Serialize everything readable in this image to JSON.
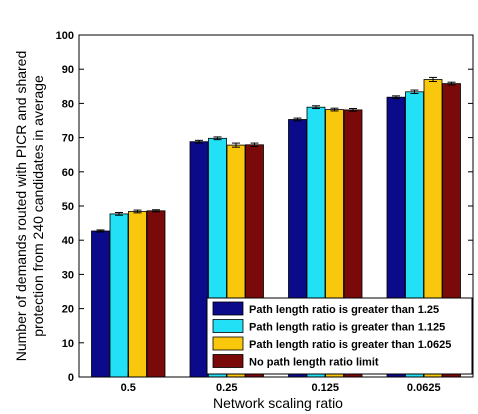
{
  "chart_data": {
    "type": "bar",
    "xlabel": "Network scaling ratio",
    "ylabel_lines": [
      "Number of demands routed with PICR and shared",
      "protection from 240 candidates in average"
    ],
    "categories": [
      "0.5",
      "0.25",
      "0.125",
      "0.0625"
    ],
    "ylim": [
      0,
      100
    ],
    "yticks": [
      0,
      10,
      20,
      30,
      40,
      50,
      60,
      70,
      80,
      90,
      100
    ],
    "grid": false,
    "legend_position": "bottom-right",
    "error_bars": true,
    "series": [
      {
        "name": "Path length ratio is greater than 1.25",
        "color": "#0a0a8a",
        "values": [
          42.7,
          68.8,
          75.3,
          81.8
        ],
        "errors": [
          0.3,
          0.4,
          0.4,
          0.4
        ]
      },
      {
        "name": "Path length ratio is greater than 1.125",
        "color": "#22e0f5",
        "values": [
          47.7,
          69.8,
          78.9,
          83.4
        ],
        "errors": [
          0.4,
          0.4,
          0.4,
          0.5
        ]
      },
      {
        "name": "Path length ratio is greater than 1.0625",
        "color": "#f9c80c",
        "values": [
          48.4,
          67.8,
          78.2,
          87.0
        ],
        "errors": [
          0.4,
          0.6,
          0.4,
          0.6
        ]
      },
      {
        "name": "No path length ratio limit",
        "color": "#7a0a0a",
        "values": [
          48.6,
          67.9,
          78.1,
          85.8
        ],
        "errors": [
          0.3,
          0.5,
          0.4,
          0.4
        ]
      }
    ]
  }
}
